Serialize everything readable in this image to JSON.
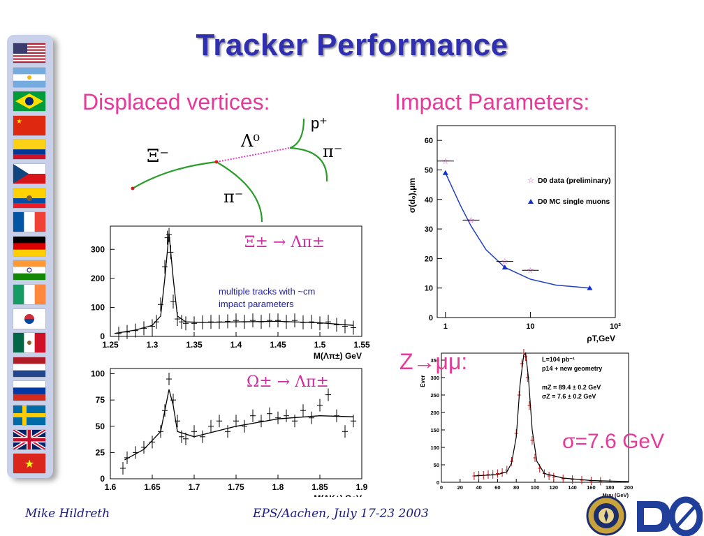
{
  "title": "Tracker Performance",
  "section_left": "Displaced vertices:",
  "section_right": "Impact Parameters:",
  "footer": {
    "author": "Mike Hildreth",
    "event": "EPS/Aachen, July 17-23 2003"
  },
  "sidebar_flags": [
    "usa",
    "argentina",
    "brazil",
    "china",
    "colombia",
    "czech",
    "ecuador",
    "france",
    "germany",
    "india",
    "ireland",
    "korea",
    "mexico",
    "netherlands",
    "russia",
    "sweden",
    "uk",
    "vietnam"
  ],
  "diagram": {
    "xi": "Ξ⁻",
    "lambda": "Λ⁰",
    "pion1": "π⁻",
    "pion2": "π⁻",
    "proton": "p⁺"
  },
  "zmm_label": "Z→μμ:",
  "sigma_label": "σ=7.6 GeV",
  "colors": {
    "title": "#2f2fb0",
    "accent": "#e6399a",
    "sidebar": "#c9d1ea",
    "fit_blue": "#2040c0",
    "data_red": "#cc1111"
  },
  "chart_data": [
    {
      "id": "xi-mass",
      "type": "scatter",
      "title": "Ξ± → Λπ±",
      "annotation": [
        "multiple tracks with ~cm",
        "impact parameters"
      ],
      "xlabel": "M(Λπ±) GeV",
      "xlim": [
        1.25,
        1.55
      ],
      "ylim": [
        0,
        380
      ],
      "xticks": [
        "1.25",
        "1.3",
        "1.35",
        "1.4",
        "1.45",
        "1.5",
        "1.55"
      ],
      "yticks": [
        "0",
        "100",
        "200",
        "300"
      ],
      "x": [
        1.26,
        1.27,
        1.28,
        1.29,
        1.3,
        1.305,
        1.31,
        1.315,
        1.318,
        1.32,
        1.322,
        1.325,
        1.33,
        1.335,
        1.34,
        1.35,
        1.36,
        1.37,
        1.38,
        1.39,
        1.4,
        1.41,
        1.42,
        1.43,
        1.44,
        1.45,
        1.46,
        1.47,
        1.48,
        1.49,
        1.5,
        1.51,
        1.52,
        1.53,
        1.54
      ],
      "y": [
        10,
        15,
        20,
        28,
        35,
        50,
        110,
        240,
        340,
        350,
        290,
        120,
        60,
        50,
        45,
        45,
        48,
        50,
        50,
        52,
        55,
        50,
        55,
        50,
        55,
        55,
        50,
        55,
        48,
        50,
        45,
        50,
        40,
        35,
        30
      ],
      "fit": [
        [
          1.255,
          10
        ],
        [
          1.28,
          22
        ],
        [
          1.3,
          38
        ],
        [
          1.31,
          70
        ],
        [
          1.315,
          200
        ],
        [
          1.32,
          355
        ],
        [
          1.325,
          200
        ],
        [
          1.33,
          70
        ],
        [
          1.34,
          50
        ],
        [
          1.36,
          48
        ],
        [
          1.4,
          50
        ],
        [
          1.45,
          52
        ],
        [
          1.5,
          47
        ],
        [
          1.54,
          38
        ]
      ]
    },
    {
      "id": "omega-mass",
      "type": "scatter",
      "title": "Ω± → Λπ±",
      "xlabel": "M(ΛK±) GeV",
      "xlim": [
        1.6,
        1.9
      ],
      "ylim": [
        0,
        105
      ],
      "xticks": [
        "1.6",
        "1.65",
        "1.7",
        "1.75",
        "1.8",
        "1.85",
        "1.9"
      ],
      "yticks": [
        "0",
        "25",
        "50",
        "75",
        "100"
      ],
      "x": [
        1.615,
        1.62,
        1.63,
        1.64,
        1.65,
        1.66,
        1.665,
        1.67,
        1.675,
        1.68,
        1.685,
        1.69,
        1.7,
        1.71,
        1.72,
        1.73,
        1.74,
        1.75,
        1.76,
        1.77,
        1.78,
        1.79,
        1.8,
        1.81,
        1.82,
        1.83,
        1.84,
        1.85,
        1.86,
        1.87,
        1.88,
        1.89
      ],
      "y": [
        10,
        20,
        25,
        30,
        35,
        45,
        65,
        95,
        75,
        55,
        40,
        38,
        45,
        40,
        50,
        55,
        45,
        55,
        50,
        60,
        55,
        62,
        58,
        60,
        55,
        65,
        58,
        70,
        80,
        60,
        45,
        55
      ],
      "fit": [
        [
          1.617,
          18
        ],
        [
          1.64,
          28
        ],
        [
          1.66,
          45
        ],
        [
          1.67,
          85
        ],
        [
          1.675,
          70
        ],
        [
          1.68,
          45
        ],
        [
          1.7,
          40
        ],
        [
          1.75,
          50
        ],
        [
          1.8,
          57
        ],
        [
          1.85,
          60
        ],
        [
          1.89,
          59
        ]
      ]
    },
    {
      "id": "impact-parameter",
      "type": "scatter",
      "xscale": "log",
      "ylabel": "σ(d₀),μm",
      "xlabel": "ρT,GeV",
      "xlim": [
        0.8,
        100
      ],
      "ylim": [
        0,
        65
      ],
      "xticks": [
        "1",
        "10",
        "10²"
      ],
      "yticks": [
        "0",
        "10",
        "20",
        "30",
        "40",
        "50",
        "60"
      ],
      "series": [
        {
          "name": "D0 data (preliminary)",
          "x": [
            1,
            2,
            5,
            10
          ],
          "y": [
            53,
            33,
            19,
            16
          ]
        },
        {
          "name": "D0 MC single muons",
          "x": [
            1,
            5,
            50
          ],
          "y": [
            49,
            17,
            10
          ]
        }
      ],
      "fit": [
        [
          1,
          49
        ],
        [
          1.5,
          38
        ],
        [
          2,
          31
        ],
        [
          3,
          23
        ],
        [
          5,
          17
        ],
        [
          10,
          13
        ],
        [
          20,
          11
        ],
        [
          50,
          10
        ]
      ]
    },
    {
      "id": "z-mass",
      "type": "scatter",
      "ylabel": "Ever",
      "xlabel": "Mμμ (GeV)",
      "annotation": [
        "L=104 pb⁻¹",
        "p14 + new geometry",
        "mZ = 89.4 ± 0.2 GeV",
        "σZ = 7.6 ± 0.2 GeV"
      ],
      "xlim": [
        0,
        200
      ],
      "ylim": [
        0,
        370
      ],
      "xticks": [
        "0",
        "20",
        "40",
        "60",
        "80",
        "100",
        "120",
        "140",
        "160",
        "180",
        "200"
      ],
      "yticks": [
        "0",
        "50",
        "100",
        "150",
        "200",
        "250",
        "300",
        "350"
      ],
      "x": [
        35,
        40,
        45,
        50,
        55,
        60,
        65,
        70,
        75,
        80,
        83,
        86,
        88,
        90,
        92,
        94,
        97,
        100,
        105,
        110,
        115,
        120,
        130,
        140,
        150,
        160,
        170
      ],
      "y": [
        18,
        20,
        20,
        22,
        22,
        25,
        28,
        35,
        60,
        140,
        250,
        340,
        370,
        360,
        300,
        220,
        120,
        70,
        40,
        25,
        18,
        15,
        10,
        8,
        6,
        4,
        3
      ],
      "fit": [
        [
          35,
          18
        ],
        [
          60,
          22
        ],
        [
          70,
          30
        ],
        [
          75,
          55
        ],
        [
          80,
          130
        ],
        [
          84,
          280
        ],
        [
          88,
          365
        ],
        [
          90,
          370
        ],
        [
          93,
          300
        ],
        [
          97,
          150
        ],
        [
          102,
          60
        ],
        [
          110,
          25
        ],
        [
          130,
          12
        ],
        [
          160,
          5
        ],
        [
          200,
          2
        ]
      ]
    }
  ]
}
